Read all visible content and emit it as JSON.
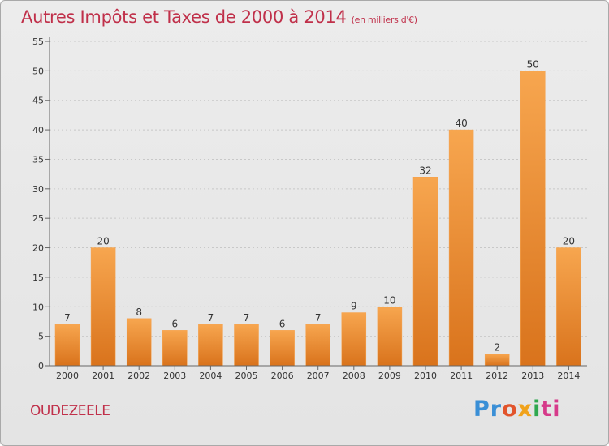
{
  "chart_data": {
    "type": "bar",
    "title": "Autres Impôts et Taxes de 2000 à 2014",
    "unit_note": "(en milliers d'€)",
    "categories": [
      "2000",
      "2001",
      "2002",
      "2003",
      "2004",
      "2005",
      "2006",
      "2007",
      "2008",
      "2009",
      "2010",
      "2011",
      "2012",
      "2013",
      "2014"
    ],
    "values": [
      7,
      20,
      8,
      6,
      7,
      7,
      6,
      7,
      9,
      10,
      32,
      40,
      2,
      50,
      20
    ],
    "ylim": [
      0,
      55
    ],
    "yticks": [
      0,
      5,
      10,
      15,
      20,
      25,
      30,
      35,
      40,
      45,
      50,
      55
    ],
    "grid": true,
    "bar_color": "#f0922f"
  },
  "commune": "OUDEZEELE",
  "brand": {
    "letters": [
      "Pr",
      "o",
      "x",
      "i",
      "ti"
    ],
    "colors": [
      "#3a8fd6",
      "#e2542c",
      "#f0a21b",
      "#2fa84f",
      "#d63a8a"
    ]
  }
}
